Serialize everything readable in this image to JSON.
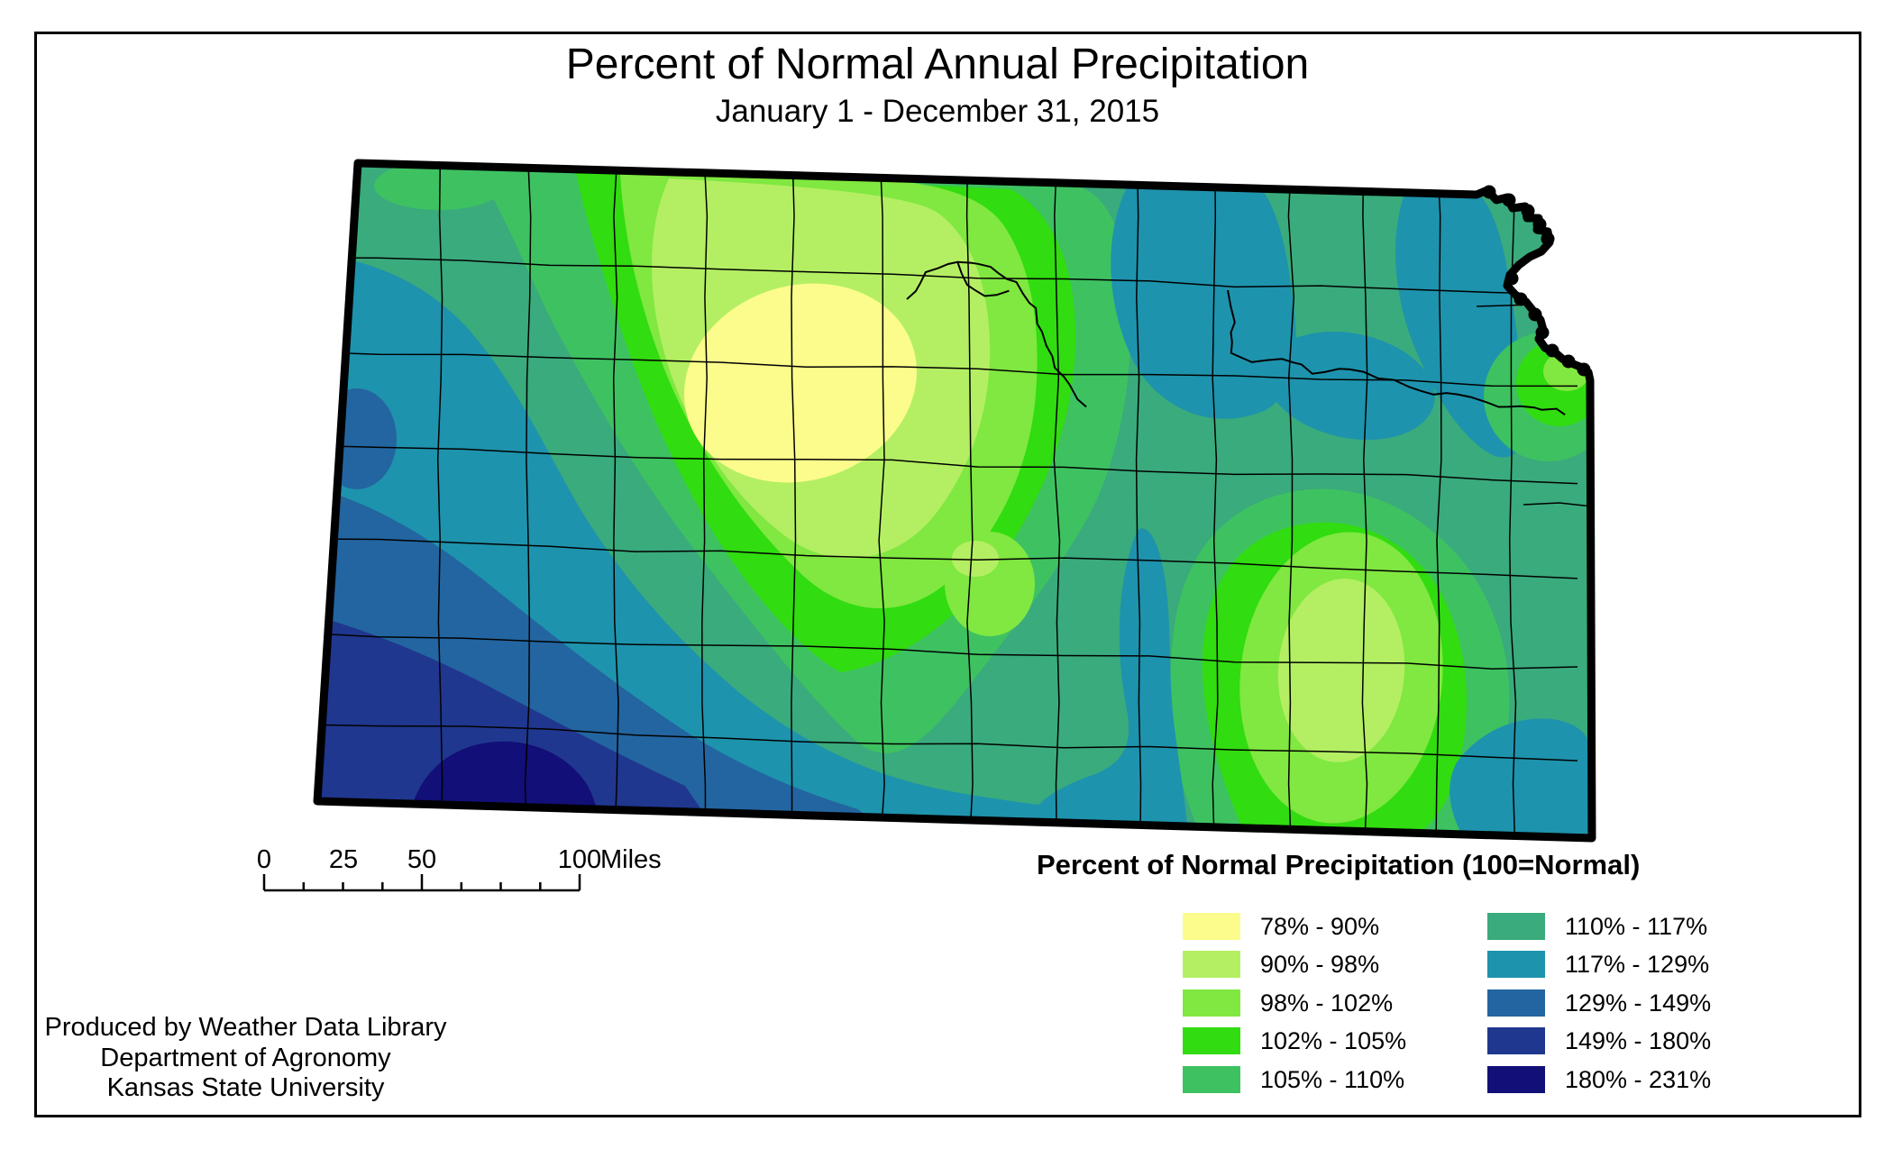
{
  "title": "Percent of Normal Annual Precipitation",
  "subtitle": "January 1 - December 31, 2015",
  "map": {
    "region": "Kansas",
    "outline_color": "#000000"
  },
  "legend": {
    "title": "Percent of Normal Precipitation (100=Normal)",
    "items": [
      {
        "label": "78% - 90%",
        "color": "#FCFC8C"
      },
      {
        "label": "90% - 98%",
        "color": "#B4EF63"
      },
      {
        "label": "98% - 102%",
        "color": "#80E840"
      },
      {
        "label": "102% - 105%",
        "color": "#31DC10"
      },
      {
        "label": "105% - 110%",
        "color": "#3EC261"
      },
      {
        "label": "110% - 117%",
        "color": "#3AAB7C"
      },
      {
        "label": "117% - 129%",
        "color": "#1E93AD"
      },
      {
        "label": "129% - 149%",
        "color": "#2365A0"
      },
      {
        "label": "149% - 180%",
        "color": "#20378F"
      },
      {
        "label": "180% - 231%",
        "color": "#120F78"
      }
    ]
  },
  "scale_bar": {
    "labels": [
      "0",
      "25",
      "50",
      "100"
    ],
    "unit": "Miles"
  },
  "credits": [
    "Produced by Weather Data Library",
    "Department of Agronomy",
    "Kansas State University"
  ]
}
